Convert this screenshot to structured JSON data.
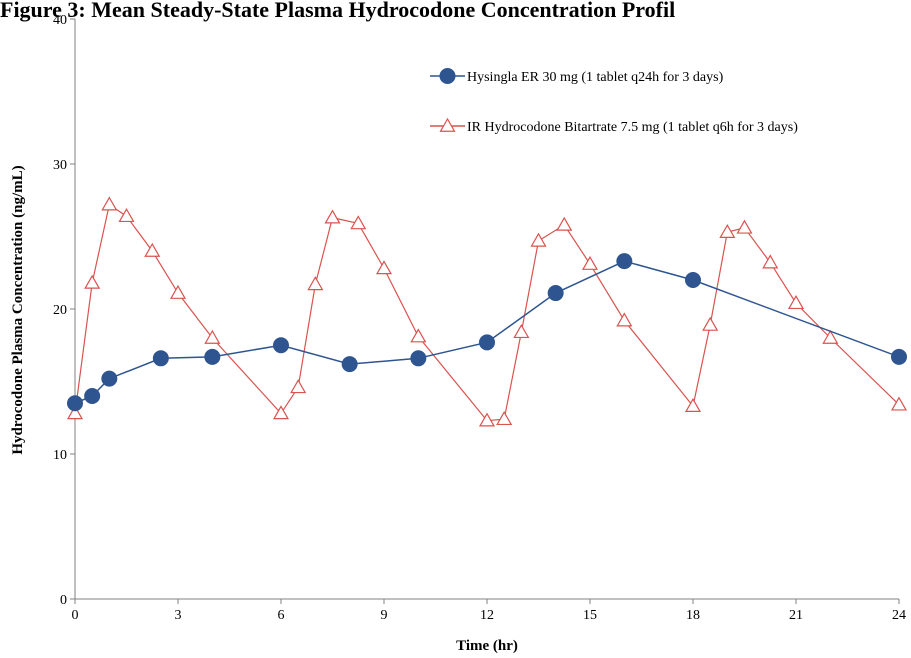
{
  "chart_data": {
    "type": "line",
    "title": "Figure 3: Mean Steady-State Plasma Hydrocodone Concentration Profil",
    "xlabel": "Time (hr)",
    "ylabel": "Hydrocodone Plasma Concentration (ng/mL)",
    "xlim": [
      0,
      24
    ],
    "ylim": [
      0,
      40
    ],
    "xticks": [
      0,
      3,
      6,
      9,
      12,
      15,
      18,
      21,
      24
    ],
    "yticks": [
      0,
      10,
      20,
      30,
      40
    ],
    "grid": false,
    "legend_position": "top-right",
    "series": [
      {
        "name": "Hysingla ER 30 mg (1 tablet q24h for 3 days)",
        "color": "#2E5590",
        "marker": "circle",
        "x": [
          0,
          0.5,
          1,
          2.5,
          4,
          6,
          8,
          10,
          12,
          14,
          16,
          18,
          24
        ],
        "y": [
          13.5,
          14,
          15.2,
          16.6,
          16.7,
          17.5,
          16.2,
          16.6,
          17.7,
          21.1,
          23.3,
          22,
          16.7
        ]
      },
      {
        "name": "IR Hydrocodone Bitartrate 7.5 mg (1 tablet q6h for 3 days)",
        "color": "#D9534F",
        "marker": "triangle",
        "x": [
          0,
          0.5,
          1,
          1.5,
          2.25,
          3,
          4,
          6,
          6.5,
          7,
          7.5,
          8.25,
          9,
          10,
          12,
          12.5,
          13,
          13.5,
          14.25,
          15,
          16,
          18,
          18.5,
          19,
          19.5,
          20.25,
          21,
          22,
          24
        ],
        "y": [
          12.8,
          21.8,
          27.2,
          26.4,
          24,
          21.1,
          18,
          12.8,
          14.6,
          21.7,
          26.3,
          25.9,
          22.8,
          18.1,
          12.3,
          12.4,
          18.4,
          24.7,
          25.8,
          23.1,
          19.2,
          13.3,
          18.9,
          25.3,
          25.6,
          23.2,
          20.4,
          18,
          13.4
        ]
      }
    ]
  }
}
